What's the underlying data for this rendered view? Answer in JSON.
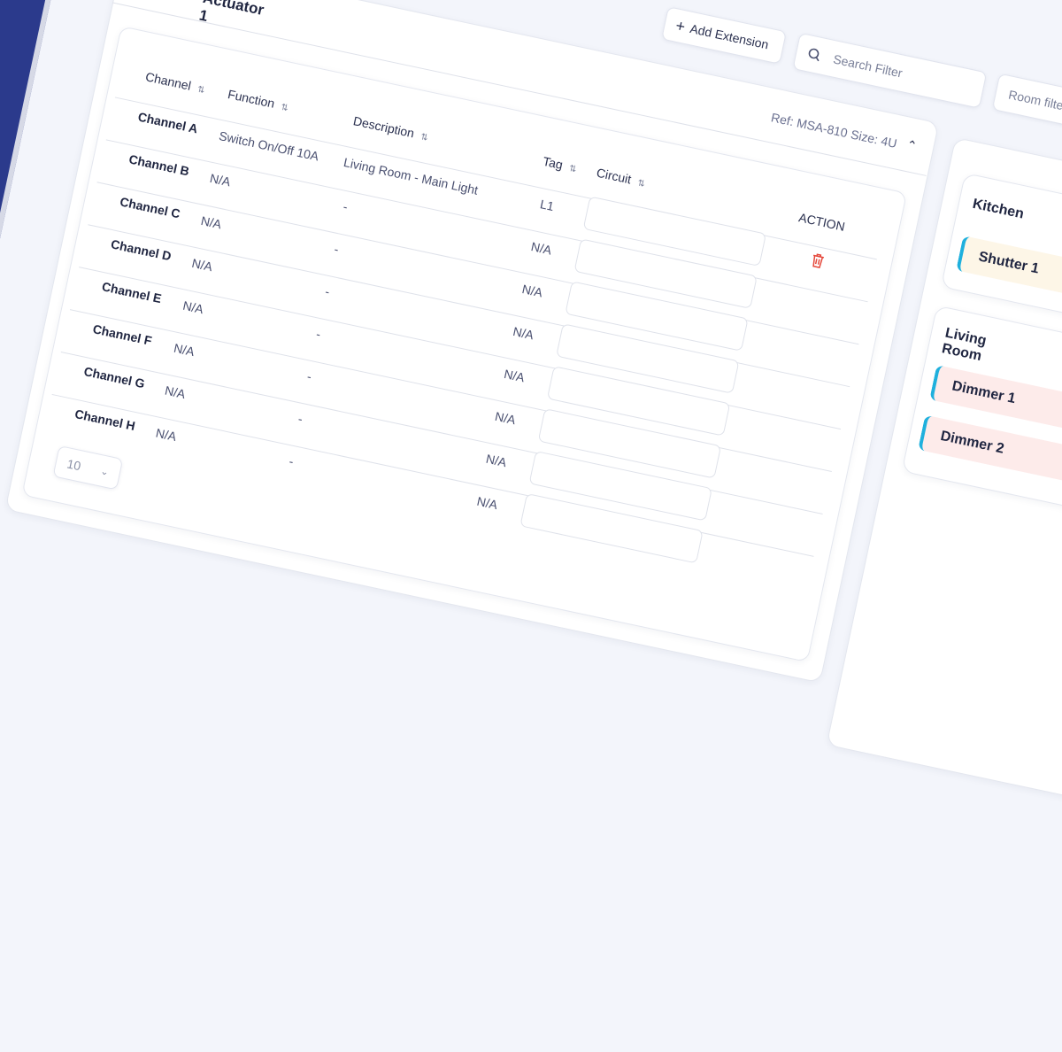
{
  "card": {
    "title": "Actuator 1",
    "ref": "Ref: MSA-810",
    "size": "Size: 4U"
  },
  "toolbar": {
    "add_extension": "Add Extension",
    "search_placeholder": "Search Filter",
    "room_filter_placeholder": "Room filter"
  },
  "table": {
    "headers": {
      "channel": "Channel",
      "function": "Function",
      "description": "Description",
      "tag": "Tag",
      "circuit": "Circuit",
      "action": "ACTION"
    },
    "rows": [
      {
        "channel": "Channel A",
        "function": "Switch On/Off 10A",
        "description": "Living Room - Main Light",
        "tag": "L1"
      },
      {
        "channel": "Channel B",
        "function": "N/A",
        "description": "-",
        "tag": "N/A"
      },
      {
        "channel": "Channel C",
        "function": "N/A",
        "description": "-",
        "tag": "N/A"
      },
      {
        "channel": "Channel D",
        "function": "N/A",
        "description": "-",
        "tag": "N/A"
      },
      {
        "channel": "Channel E",
        "function": "N/A",
        "description": "-",
        "tag": "N/A"
      },
      {
        "channel": "Channel F",
        "function": "N/A",
        "description": "-",
        "tag": "N/A"
      },
      {
        "channel": "Channel G",
        "function": "N/A",
        "description": "-",
        "tag": "N/A"
      },
      {
        "channel": "Channel H",
        "function": "N/A",
        "description": "-",
        "tag": "N/A"
      }
    ],
    "page_size": "10"
  },
  "rooms": [
    {
      "name": "Kitchen",
      "items": [
        {
          "label": "Shutter 1",
          "color": "#fdf6e7"
        }
      ]
    },
    {
      "name": "Living Room",
      "items": [
        {
          "label": "Dimmer 1",
          "color": "#fdebea"
        },
        {
          "label": "Dimmer 2",
          "color": "#fdebea"
        }
      ]
    }
  ],
  "colors": {
    "sidebar": "#2b3a8c",
    "accent": "#1fb0dd",
    "delete": "#e5483b"
  }
}
